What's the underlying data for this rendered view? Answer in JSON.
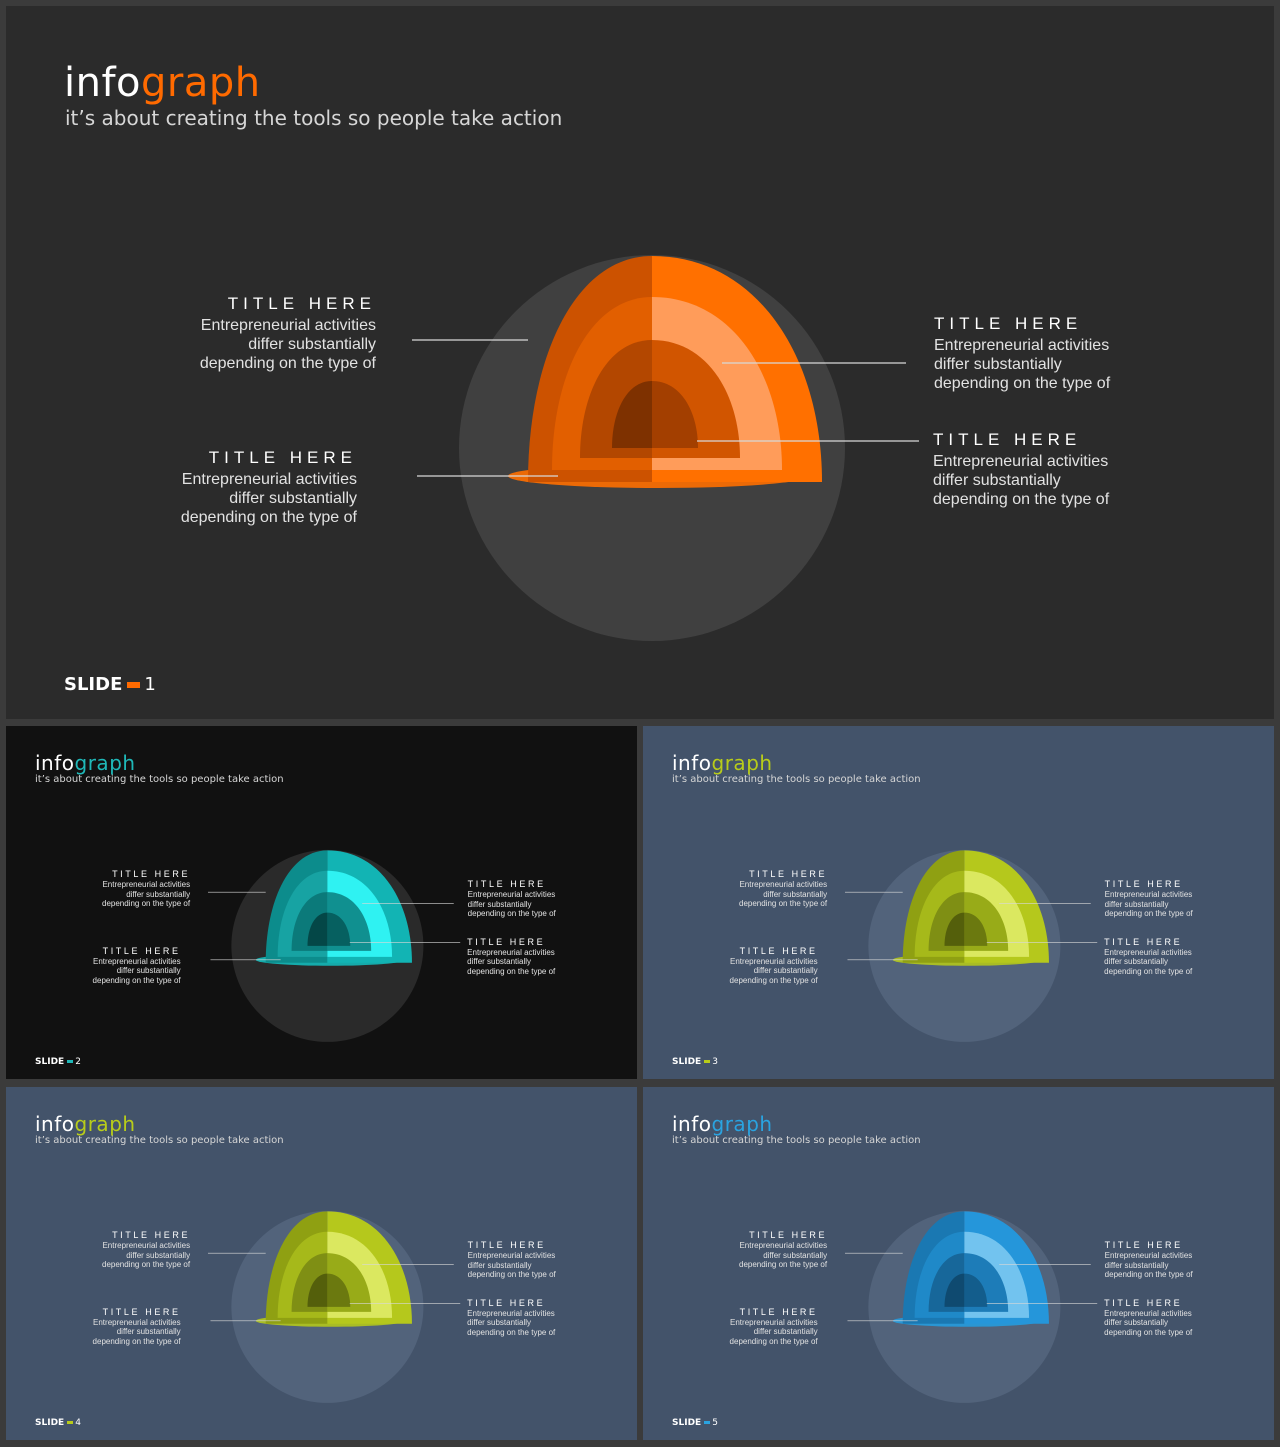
{
  "slides": [
    {
      "id": "s1",
      "brand": {
        "prefix": "info",
        "accent": "graph"
      },
      "tagline": "it’s about creating the tools so people take action",
      "footer": {
        "label": "SLIDE",
        "number": "1"
      },
      "background": "#2b2b2b",
      "circle_color": "#404040",
      "brand_prefix_color": "#ffffff",
      "accent_color": "#ff6a00",
      "layer_colors": {
        "outer_left": "#cc5200",
        "outer_right": "#ff7000",
        "mid_left": "#e25f00",
        "mid_right": "#ff9c5a",
        "inner_left": "#b34700",
        "inner_right": "#d15500",
        "core_left": "#7e3100",
        "core_right": "#a33f00",
        "base": "#ff6f00"
      },
      "callouts": [
        {
          "title": "TITLE HERE",
          "lines": [
            "Entrepreneurial activities",
            "differ substantially",
            "depending on the type of"
          ]
        },
        {
          "title": "TITLE HERE",
          "lines": [
            "Entrepreneurial activities",
            "differ substantially",
            "depending on the type of"
          ]
        },
        {
          "title": "TITLE HERE",
          "lines": [
            "Entrepreneurial activities",
            "differ substantially",
            "depending on the type of"
          ]
        },
        {
          "title": "TITLE HERE",
          "lines": [
            "Entrepreneurial activities",
            "differ substantially",
            "depending on the type of"
          ]
        }
      ]
    },
    {
      "id": "s2",
      "brand": {
        "prefix": "info",
        "accent": "graph"
      },
      "tagline": "it’s about creating the tools so people take action",
      "footer": {
        "label": "SLIDE",
        "number": "2"
      },
      "background": "#111111",
      "circle_color": "#2a2a2a",
      "brand_prefix_color": "#ffffff",
      "accent_color": "#1fb8b8",
      "layer_colors": {
        "outer_left": "#0c8c8c",
        "outer_right": "#12b4b4",
        "mid_left": "#17a3a3",
        "mid_right": "#2ff2f2",
        "inner_left": "#0b7a7a",
        "inner_right": "#109090",
        "core_left": "#044747",
        "core_right": "#066060",
        "base": "#13b9b9"
      },
      "callouts": [
        {
          "title": "TITLE HERE",
          "lines": [
            "Entrepreneurial activities",
            "differ substantially",
            "depending on the type of"
          ]
        },
        {
          "title": "TITLE HERE",
          "lines": [
            "Entrepreneurial activities",
            "differ substantially",
            "depending on the type of"
          ]
        },
        {
          "title": "TITLE HERE",
          "lines": [
            "Entrepreneurial activities",
            "differ substantially",
            "depending on the type of"
          ]
        },
        {
          "title": "TITLE HERE",
          "lines": [
            "Entrepreneurial activities",
            "differ substantially",
            "depending on the type of"
          ]
        }
      ]
    },
    {
      "id": "s3",
      "brand": {
        "prefix": "info",
        "accent": "graph"
      },
      "tagline": "it’s about creating the tools so people take action",
      "footer": {
        "label": "SLIDE",
        "number": "3"
      },
      "background": "#43536a",
      "circle_color": "#52637b",
      "brand_prefix_color": "#ffffff",
      "accent_color": "#b8cc1a",
      "layer_colors": {
        "outer_left": "#8fa012",
        "outer_right": "#b5c81c",
        "mid_left": "#a6b91a",
        "mid_right": "#dbe860",
        "inner_left": "#7f8f14",
        "inner_right": "#98ab18",
        "core_left": "#545f0b",
        "core_right": "#6b790f",
        "base": "#b3c61b"
      },
      "callouts": [
        {
          "title": "TITLE HERE",
          "lines": [
            "Entrepreneurial activities",
            "differ substantially",
            "depending on the type of"
          ]
        },
        {
          "title": "TITLE HERE",
          "lines": [
            "Entrepreneurial activities",
            "differ substantially",
            "depending on the type of"
          ]
        },
        {
          "title": "TITLE HERE",
          "lines": [
            "Entrepreneurial activities",
            "differ substantially",
            "depending on the type of"
          ]
        },
        {
          "title": "TITLE HERE",
          "lines": [
            "Entrepreneurial activities",
            "differ substantially",
            "depending on the type of"
          ]
        }
      ]
    },
    {
      "id": "s4",
      "brand": {
        "prefix": "info",
        "accent": "graph"
      },
      "tagline": "it’s about creating the tools so people take action",
      "footer": {
        "label": "SLIDE",
        "number": "4"
      },
      "background": "#43536a",
      "circle_color": "#52637b",
      "brand_prefix_color": "#ffffff",
      "accent_color": "#b8cc1a",
      "layer_colors": {
        "outer_left": "#8fa012",
        "outer_right": "#b5c81c",
        "mid_left": "#a6b91a",
        "mid_right": "#dbe860",
        "inner_left": "#7f8f14",
        "inner_right": "#98ab18",
        "core_left": "#545f0b",
        "core_right": "#6b790f",
        "base": "#b3c61b"
      },
      "callouts": [
        {
          "title": "TITLE HERE",
          "lines": [
            "Entrepreneurial activities",
            "differ substantially",
            "depending on the type of"
          ]
        },
        {
          "title": "TITLE HERE",
          "lines": [
            "Entrepreneurial activities",
            "differ substantially",
            "depending on the type of"
          ]
        },
        {
          "title": "TITLE HERE",
          "lines": [
            "Entrepreneurial activities",
            "differ substantially",
            "depending on the type of"
          ]
        },
        {
          "title": "TITLE HERE",
          "lines": [
            "Entrepreneurial activities",
            "differ substantially",
            "depending on the type of"
          ]
        }
      ]
    },
    {
      "id": "s5",
      "brand": {
        "prefix": "info",
        "accent": "graph"
      },
      "tagline": "it’s about creating the tools so people take action",
      "footer": {
        "label": "SLIDE",
        "number": "5"
      },
      "background": "#43536a",
      "circle_color": "#52637b",
      "brand_prefix_color": "#ffffff",
      "accent_color": "#2aa3e0",
      "layer_colors": {
        "outer_left": "#1a78b2",
        "outer_right": "#2596da",
        "mid_left": "#1f89c8",
        "mid_right": "#72c3ef",
        "inner_left": "#17679a",
        "inner_right": "#1d7cb8",
        "core_left": "#0f4a70",
        "core_right": "#135d8c",
        "base": "#259bde"
      },
      "callouts": [
        {
          "title": "TITLE HERE",
          "lines": [
            "Entrepreneurial activities",
            "differ substantially",
            "depending on the type of"
          ]
        },
        {
          "title": "TITLE HERE",
          "lines": [
            "Entrepreneurial activities",
            "differ substantially",
            "depending on the type of"
          ]
        },
        {
          "title": "TITLE HERE",
          "lines": [
            "Entrepreneurial activities",
            "differ substantially",
            "depending on the type of"
          ]
        },
        {
          "title": "TITLE HERE",
          "lines": [
            "Entrepreneurial activities",
            "differ substantially",
            "depending on the type of"
          ]
        }
      ]
    }
  ]
}
